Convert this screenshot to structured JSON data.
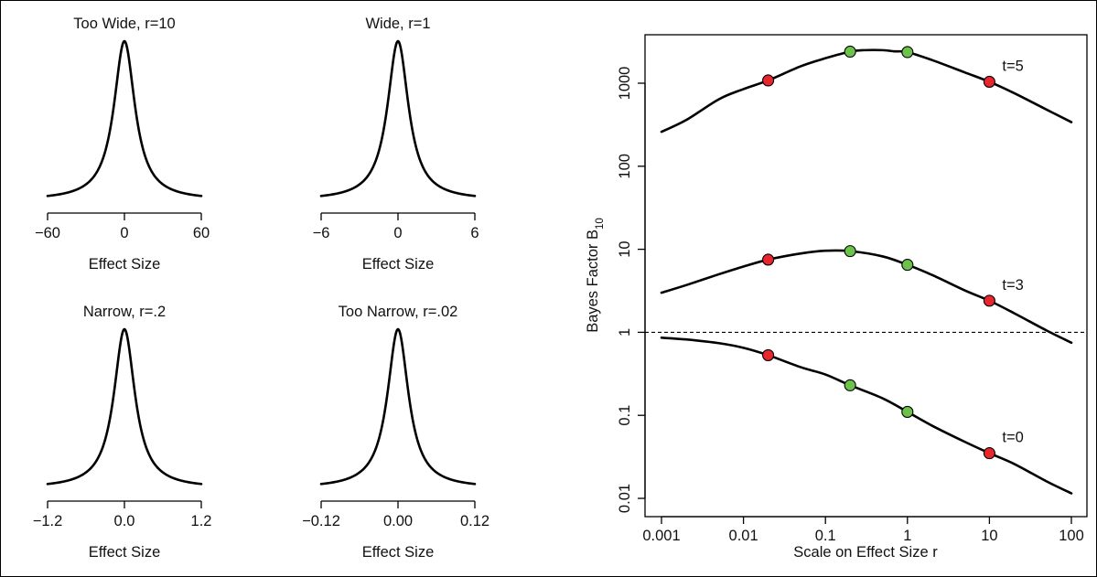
{
  "chart_data": [
    {
      "type": "line",
      "title": "Too Wide, r=10",
      "xlabel": "Effect Size",
      "scale": 10,
      "xlim": [
        -60,
        60
      ],
      "xticks": [
        "−60",
        "0",
        "60"
      ],
      "xtick_values": [
        -60,
        0,
        60
      ]
    },
    {
      "type": "line",
      "title": "Wide, r=1",
      "xlabel": "Effect Size",
      "scale": 1,
      "xlim": [
        -6,
        6
      ],
      "xticks": [
        "−6",
        "0",
        "6"
      ],
      "xtick_values": [
        -6,
        0,
        6
      ]
    },
    {
      "type": "line",
      "title": "Narrow, r=.2",
      "xlabel": "Effect Size",
      "scale": 0.2,
      "xlim": [
        -1.2,
        1.2
      ],
      "xticks": [
        "−1.2",
        "0.0",
        "1.2"
      ],
      "xtick_values": [
        -1.2,
        0,
        1.2
      ]
    },
    {
      "type": "line",
      "title": "Too Narrow, r=.02",
      "xlabel": "Effect Size",
      "scale": 0.02,
      "xlim": [
        -0.12,
        0.12
      ],
      "xticks": [
        "−0.12",
        "0.00",
        "0.12"
      ],
      "xtick_values": [
        -0.12,
        0,
        0.12
      ]
    },
    {
      "type": "line",
      "xlabel": "Scale on Effect Size r",
      "ylabel_main": "Bayes Factor B",
      "ylabel_sub": "10",
      "x_scale": "log",
      "y_scale": "log",
      "xlim": [
        0.001,
        100
      ],
      "ylim": [
        0.01,
        5000
      ],
      "grid": false,
      "xticks": [
        "0.001",
        "0.01",
        "0.1",
        "1",
        "10",
        "100"
      ],
      "xtick_values": [
        0.001,
        0.01,
        0.1,
        1,
        10,
        100
      ],
      "yticks": [
        "0.01",
        "0.1",
        "1",
        "10",
        "100",
        "1000"
      ],
      "ytick_values": [
        0.01,
        0.1,
        1,
        10,
        100,
        1000
      ],
      "reference_line_y": 1,
      "series": [
        {
          "name": "t=5",
          "x": [
            0.001,
            0.002,
            0.005,
            0.01,
            0.02,
            0.05,
            0.1,
            0.2,
            0.3,
            0.5,
            0.7,
            1,
            2,
            5,
            10,
            20,
            50,
            100
          ],
          "y": [
            260,
            360,
            640,
            850,
            1080,
            1600,
            2000,
            2400,
            2500,
            2500,
            2420,
            2370,
            1900,
            1350,
            1040,
            760,
            480,
            340
          ]
        },
        {
          "name": "t=3",
          "x": [
            0.001,
            0.002,
            0.005,
            0.01,
            0.02,
            0.05,
            0.1,
            0.2,
            0.5,
            1,
            2,
            5,
            10,
            20,
            50,
            100
          ],
          "y": [
            3.0,
            3.7,
            5.0,
            6.2,
            7.5,
            8.9,
            9.6,
            9.5,
            8.2,
            6.5,
            4.9,
            3.2,
            2.4,
            1.7,
            1.05,
            0.75
          ]
        },
        {
          "name": "t=0",
          "x": [
            0.001,
            0.002,
            0.005,
            0.01,
            0.02,
            0.05,
            0.1,
            0.2,
            0.5,
            1,
            2,
            5,
            10,
            20,
            50,
            100
          ],
          "y": [
            0.86,
            0.82,
            0.74,
            0.65,
            0.53,
            0.38,
            0.31,
            0.23,
            0.16,
            0.11,
            0.075,
            0.048,
            0.035,
            0.026,
            0.016,
            0.0115
          ]
        }
      ],
      "highlight_points": [
        {
          "series": "t=5",
          "x": 0.02,
          "y": 1080,
          "color": "#e8262d"
        },
        {
          "series": "t=5",
          "x": 0.2,
          "y": 2400,
          "color": "#6cc24a"
        },
        {
          "series": "t=5",
          "x": 1,
          "y": 2370,
          "color": "#6cc24a"
        },
        {
          "series": "t=5",
          "x": 10,
          "y": 1040,
          "color": "#e8262d"
        },
        {
          "series": "t=3",
          "x": 0.02,
          "y": 7.5,
          "color": "#e8262d"
        },
        {
          "series": "t=3",
          "x": 0.2,
          "y": 9.5,
          "color": "#6cc24a"
        },
        {
          "series": "t=3",
          "x": 1,
          "y": 6.5,
          "color": "#6cc24a"
        },
        {
          "series": "t=3",
          "x": 10,
          "y": 2.4,
          "color": "#e8262d"
        },
        {
          "series": "t=0",
          "x": 0.02,
          "y": 0.53,
          "color": "#e8262d"
        },
        {
          "series": "t=0",
          "x": 0.2,
          "y": 0.23,
          "color": "#6cc24a"
        },
        {
          "series": "t=0",
          "x": 1,
          "y": 0.11,
          "color": "#6cc24a"
        },
        {
          "series": "t=0",
          "x": 10,
          "y": 0.035,
          "color": "#e8262d"
        }
      ],
      "colors": {
        "outside_range": "#e8262d",
        "reasonable_range": "#6cc24a"
      }
    }
  ]
}
